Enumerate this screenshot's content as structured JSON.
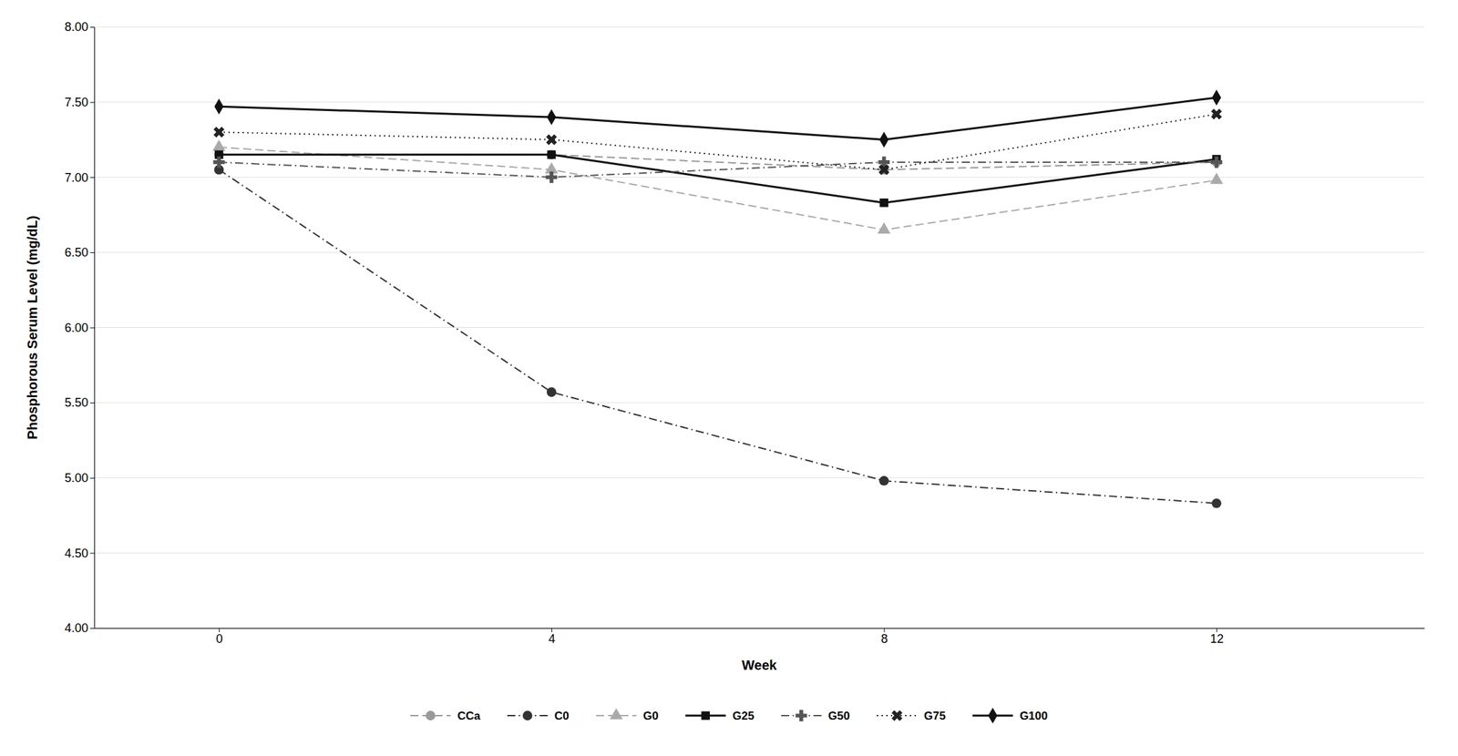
{
  "chart_data": {
    "type": "line",
    "xlabel": "Week",
    "ylabel": "Phosphorous Serum Level (mg/dL)",
    "x": [
      0,
      4,
      8,
      12
    ],
    "series": [
      {
        "name": "CCa",
        "color": "#999999",
        "marker": "circle",
        "line_style": "dashed",
        "values": [
          7.15,
          7.15,
          7.05,
          7.1
        ]
      },
      {
        "name": "C0",
        "color": "#333333",
        "marker": "circle",
        "line_style": "dashdot",
        "values": [
          7.05,
          5.57,
          4.98,
          4.83
        ]
      },
      {
        "name": "G0",
        "color": "#aaaaaa",
        "marker": "triangle",
        "line_style": "dashed",
        "values": [
          7.2,
          7.05,
          6.65,
          6.98
        ]
      },
      {
        "name": "G25",
        "color": "#111111",
        "marker": "square",
        "line_style": "solid",
        "values": [
          7.15,
          7.15,
          6.83,
          7.12
        ]
      },
      {
        "name": "G50",
        "color": "#555555",
        "marker": "plus",
        "line_style": "dashdot",
        "values": [
          7.1,
          7.0,
          7.1,
          7.1
        ]
      },
      {
        "name": "G75",
        "color": "#222222",
        "marker": "x",
        "line_style": "dotted",
        "values": [
          7.3,
          7.25,
          7.05,
          7.42
        ]
      },
      {
        "name": "G100",
        "color": "#111111",
        "marker": "diamond",
        "line_style": "solid",
        "values": [
          7.47,
          7.4,
          7.25,
          7.53
        ]
      }
    ],
    "xlim": [
      -1.5,
      14.5
    ],
    "xticks": [
      0,
      4,
      8,
      12
    ],
    "ylim": [
      4.0,
      8.0
    ],
    "yticks": [
      {
        "value": 4.0,
        "label": "4.00"
      },
      {
        "value": 4.5,
        "label": "4.50"
      },
      {
        "value": 5.0,
        "label": "5.00"
      },
      {
        "value": 5.5,
        "label": "5.50"
      },
      {
        "value": 6.0,
        "label": "6.00"
      },
      {
        "value": 6.5,
        "label": "6.50"
      },
      {
        "value": 7.0,
        "label": "7.00"
      },
      {
        "value": 7.5,
        "label": "7.50"
      },
      {
        "value": 8.0,
        "label": "8.00"
      }
    ],
    "grid": true,
    "legend": "bottom"
  }
}
